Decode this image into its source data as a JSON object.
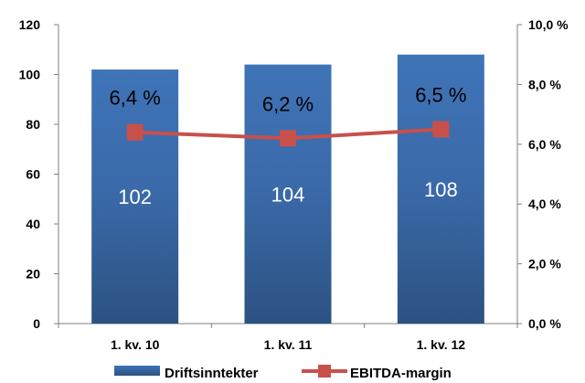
{
  "chart_data": {
    "type": "bar",
    "categories": [
      "1. kv. 10",
      "1. kv. 11",
      "1. kv. 12"
    ],
    "series": [
      {
        "name": "Driftsinntekter",
        "type": "bar",
        "axis": "left",
        "values": [
          102,
          104,
          108
        ],
        "labels": [
          "102",
          "104",
          "108"
        ],
        "color": "#3a6aa8"
      },
      {
        "name": "EBITDA-margin",
        "type": "line",
        "axis": "right",
        "values": [
          6.4,
          6.2,
          6.5
        ],
        "labels": [
          "6,4 %",
          "6,2 %",
          "6,5 %"
        ],
        "color": "#c8504b"
      }
    ],
    "left_axis": {
      "ylim": [
        0,
        120
      ],
      "ticks": [
        0,
        20,
        40,
        60,
        80,
        100,
        120
      ],
      "tick_labels": [
        "0",
        "20",
        "40",
        "60",
        "80",
        "100",
        "120"
      ]
    },
    "right_axis": {
      "ylim": [
        0,
        10
      ],
      "ticks": [
        0,
        2,
        4,
        6,
        8,
        10
      ],
      "tick_labels": [
        "0,0 %",
        "2,0 %",
        "4,0 %",
        "6,0 %",
        "8,0 %",
        "10,0 %"
      ]
    },
    "grid": false,
    "legend": "bottom",
    "title": "",
    "xlabel": "",
    "ylabel": ""
  }
}
